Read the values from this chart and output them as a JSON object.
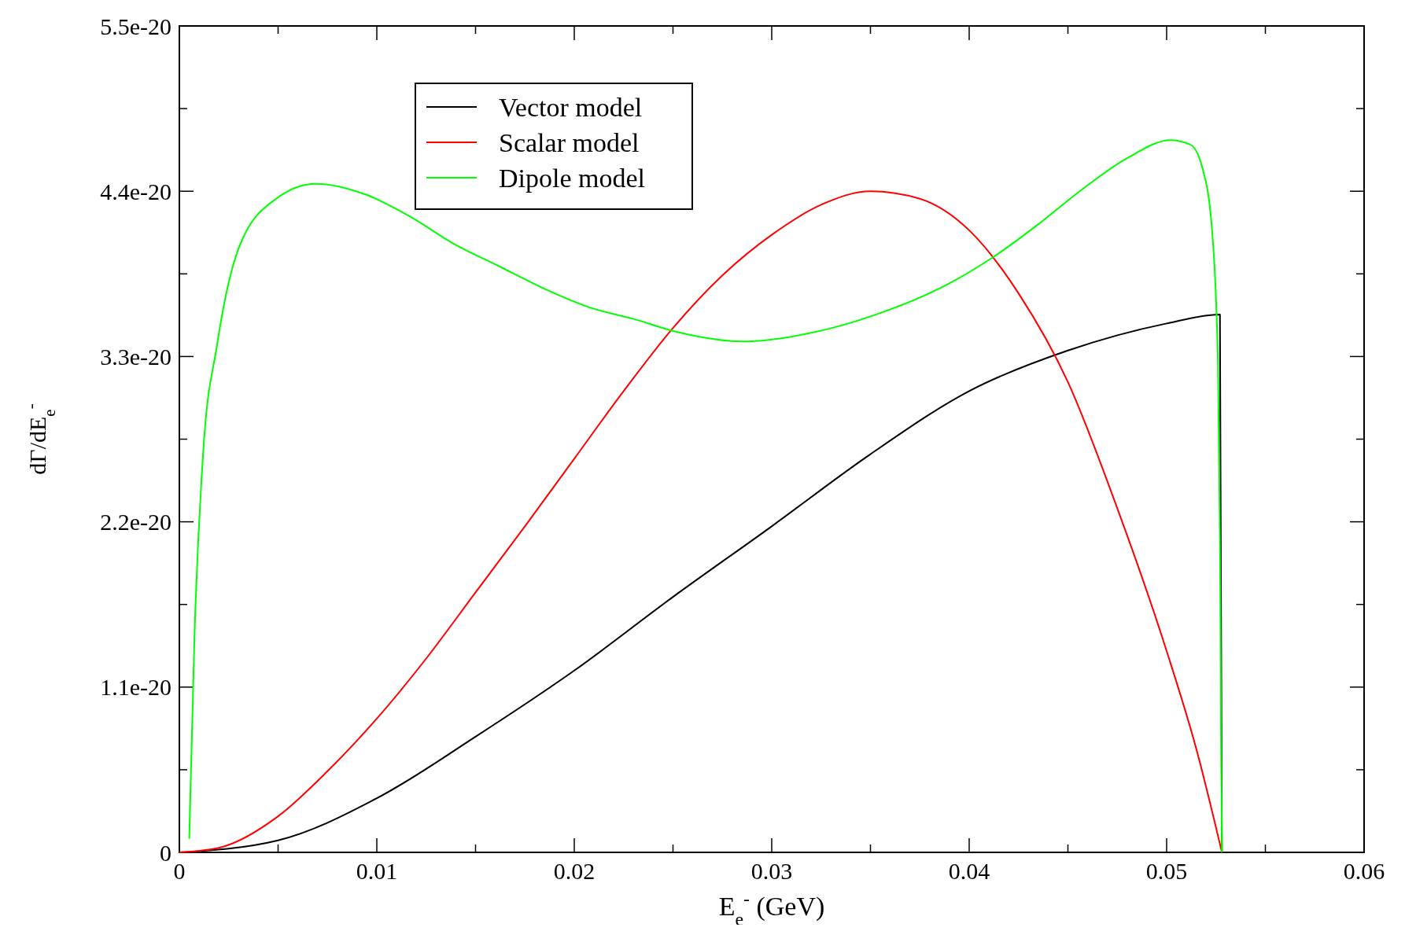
{
  "chart_data": {
    "type": "line",
    "xlabel": "E$_{e}$$^{-}$ (GeV)",
    "ylabel": "dΓ/dE$_{e}$$^{-}$",
    "xlim": [
      0,
      0.06
    ],
    "ylim": [
      0,
      5.5e-20
    ],
    "xticks": [
      {
        "value": 0,
        "label": "0"
      },
      {
        "value": 0.005,
        "label": null
      },
      {
        "value": 0.01,
        "label": "0.01"
      },
      {
        "value": 0.015,
        "label": null
      },
      {
        "value": 0.02,
        "label": "0.02"
      },
      {
        "value": 0.025,
        "label": null
      },
      {
        "value": 0.03,
        "label": "0.03"
      },
      {
        "value": 0.035,
        "label": null
      },
      {
        "value": 0.04,
        "label": "0.04"
      },
      {
        "value": 0.045,
        "label": null
      },
      {
        "value": 0.05,
        "label": "0.05"
      },
      {
        "value": 0.055,
        "label": null
      },
      {
        "value": 0.06,
        "label": "0.06"
      }
    ],
    "yticks": [
      {
        "value": 0,
        "label": "0"
      },
      {
        "value": 5.5e-21,
        "label": null
      },
      {
        "value": 1.1e-20,
        "label": "1.1e-20"
      },
      {
        "value": 1.65e-20,
        "label": null
      },
      {
        "value": 2.2e-20,
        "label": "2.2e-20"
      },
      {
        "value": 2.75e-20,
        "label": null
      },
      {
        "value": 3.3e-20,
        "label": "3.3e-20"
      },
      {
        "value": 3.85e-20,
        "label": null
      },
      {
        "value": 4.4e-20,
        "label": "4.4e-20"
      },
      {
        "value": 4.95e-20,
        "label": null
      },
      {
        "value": 5.5e-20,
        "label": "5.5e-20"
      }
    ],
    "grid": false,
    "legend": "top left",
    "line_style": "solid",
    "marker": "none",
    "series": [
      {
        "name": "Vector model",
        "color": "#000000",
        "x": [
          0,
          0.005,
          0.01,
          0.015,
          0.02,
          0.025,
          0.03,
          0.035,
          0.04,
          0.045,
          0.05,
          0.0527,
          0.0528
        ],
        "values": [
          0,
          8e-22,
          3.6e-21,
          7.7e-21,
          1.21e-20,
          1.7e-20,
          2.17e-20,
          2.65e-20,
          3.07e-20,
          3.34e-20,
          3.52e-20,
          3.58e-20,
          0
        ]
      },
      {
        "name": "Scalar model",
        "color": "#ff0000",
        "x": [
          0,
          0.002,
          0.005,
          0.0075,
          0.01,
          0.0125,
          0.015,
          0.0175,
          0.02,
          0.0225,
          0.025,
          0.0275,
          0.03,
          0.0325,
          0.035,
          0.0375,
          0.04,
          0.0425,
          0.045,
          0.0475,
          0.05,
          0.0515,
          0.0528
        ],
        "values": [
          0,
          3e-22,
          2.4e-21,
          5.4e-21,
          8.9e-21,
          1.29e-20,
          1.73e-20,
          2.17e-20,
          2.62e-20,
          3.07e-20,
          3.49e-20,
          3.84e-20,
          4.11e-20,
          4.31e-20,
          4.4e-20,
          4.35e-20,
          4.14e-20,
          3.72e-20,
          3.13e-20,
          2.29e-20,
          1.34e-20,
          6.9e-21,
          0
        ]
      },
      {
        "name": "Dipole model",
        "color": "#00ff00",
        "x": [
          0.0005,
          0.00077,
          0.0012,
          0.0019,
          0.003,
          0.0049,
          0.0069,
          0.0094,
          0.0117,
          0.0139,
          0.0162,
          0.0185,
          0.0207,
          0.023,
          0.0253,
          0.0285,
          0.0321,
          0.0353,
          0.0389,
          0.0412,
          0.0434,
          0.0457,
          0.048,
          0.0502,
          0.0512,
          0.0518,
          0.0523,
          0.0526,
          0.0527,
          0.0528
        ],
        "values": [
          9e-22,
          1.46e-20,
          2.65e-20,
          3.37e-20,
          4.02e-20,
          4.35e-20,
          4.45e-20,
          4.38e-20,
          4.23e-20,
          4.05e-20,
          3.9e-20,
          3.75e-20,
          3.63e-20,
          3.55e-20,
          3.46e-20,
          3.4e-20,
          3.46e-20,
          3.58e-20,
          3.78e-20,
          3.96e-20,
          4.17e-20,
          4.41e-20,
          4.62e-20,
          4.74e-20,
          4.71e-20,
          4.56e-20,
          4.14e-20,
          3.25e-20,
          2.06e-20,
          0
        ]
      }
    ]
  }
}
